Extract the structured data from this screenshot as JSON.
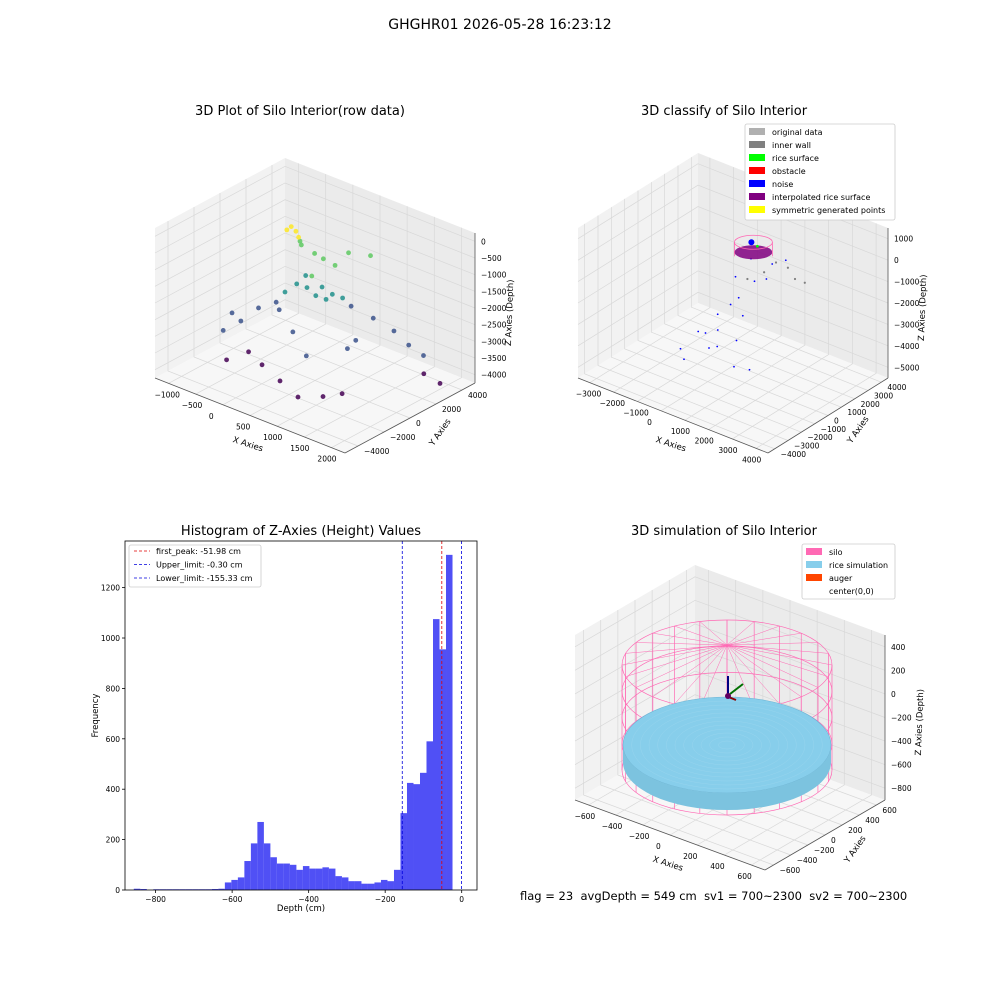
{
  "figure": {
    "suptitle": "GHGHR01 2026-05-28 16:23:12",
    "status": {
      "flag": "flag = 23",
      "avg_depth": "avgDepth = 549 cm",
      "sv1": "sv1 = 700~2300",
      "sv2": "sv2 = 700~2300"
    }
  },
  "colors": {
    "histogram_bar": "#5050f5",
    "first_peak_line": "#e00000",
    "limit_lines": "#0000dd",
    "silo": "#ff69b4",
    "rice": "#87ceeb",
    "auger": "#ff4500",
    "original_data": "#b0b0b0",
    "inner_wall": "#808080",
    "rice_surface": "#00ff00",
    "obstacle": "#ff0000",
    "noise": "#0000ff",
    "interpolated": "#800080",
    "symmetric": "#ffff00"
  },
  "chart_data": [
    {
      "type": "scatter",
      "subtype": "3d",
      "title": "3D Plot of Silo Interior(row data)",
      "xlabel": "X Axies",
      "ylabel": "Y Axies",
      "zlabel": "Z Axies (Depth)",
      "x_ticks": [
        "−1000",
        "−500",
        "0",
        "500",
        "1000",
        "1500",
        "2000"
      ],
      "y_ticks": [
        "−4000",
        "−2000",
        "0",
        "2000",
        "4000"
      ],
      "z_ticks": [
        "0",
        "−500",
        "−1000",
        "−1500",
        "−2000",
        "−2500",
        "−3000",
        "−3500",
        "−4000"
      ],
      "xlim": [
        -1200,
        2000
      ],
      "ylim": [
        -4500,
        4500
      ],
      "zlim": [
        -4100,
        0
      ],
      "colormap": "viridis",
      "points": [
        {
          "x": 0,
          "y": 0,
          "z": -150
        },
        {
          "x": 30,
          "y": 200,
          "z": -300
        },
        {
          "x": -50,
          "y": -100,
          "z": -250
        },
        {
          "x": 100,
          "y": 100,
          "z": -400
        },
        {
          "x": 50,
          "y": 400,
          "z": -600
        },
        {
          "x": 0,
          "y": 700,
          "z": -800
        },
        {
          "x": 150,
          "y": 1000,
          "z": -1000
        },
        {
          "x": 200,
          "y": 1400,
          "z": -1200
        },
        {
          "x": 300,
          "y": 1800,
          "z": -1400
        },
        {
          "x": 600,
          "y": 1500,
          "z": -800
        },
        {
          "x": 800,
          "y": 2200,
          "z": -900
        },
        {
          "x": 200,
          "y": 600,
          "z": -1500
        },
        {
          "x": 300,
          "y": 900,
          "z": -1800
        },
        {
          "x": 400,
          "y": 1200,
          "z": -2000
        },
        {
          "x": 500,
          "y": 1500,
          "z": -2100
        },
        {
          "x": 0,
          "y": 1000,
          "z": -1700
        },
        {
          "x": -200,
          "y": 1200,
          "z": -2100
        },
        {
          "x": -300,
          "y": 800,
          "z": -2300
        },
        {
          "x": -400,
          "y": 600,
          "z": -2600
        },
        {
          "x": 0,
          "y": 1700,
          "z": -2400
        },
        {
          "x": 100,
          "y": 2000,
          "z": -2500
        },
        {
          "x": 400,
          "y": 2500,
          "z": -2600
        },
        {
          "x": 700,
          "y": 2800,
          "z": -2800
        },
        {
          "x": 1000,
          "y": 3000,
          "z": -3000
        },
        {
          "x": 1200,
          "y": 3200,
          "z": -3300
        },
        {
          "x": 1400,
          "y": 3400,
          "z": -3500
        },
        {
          "x": -600,
          "y": 200,
          "z": -2800
        },
        {
          "x": -800,
          "y": -200,
          "z": -3200
        },
        {
          "x": -1000,
          "y": -600,
          "z": -3500
        },
        {
          "x": -500,
          "y": -900,
          "z": -3700
        },
        {
          "x": -200,
          "y": -1200,
          "z": -3800
        },
        {
          "x": 200,
          "y": -1600,
          "z": -3900
        },
        {
          "x": 600,
          "y": -2000,
          "z": -4000
        },
        {
          "x": 900,
          "y": -1500,
          "z": -3900
        },
        {
          "x": 1100,
          "y": -1000,
          "z": -3800
        },
        {
          "x": -700,
          "y": -1600,
          "z": -3900
        },
        {
          "x": -900,
          "y": -400,
          "z": -3000
        },
        {
          "x": 400,
          "y": -600,
          "z": -3300
        },
        {
          "x": 800,
          "y": 600,
          "z": -3100
        },
        {
          "x": 1600,
          "y": 2600,
          "z": -3700
        },
        {
          "x": 1800,
          "y": 2900,
          "z": -3900
        },
        {
          "x": -300,
          "y": 400,
          "z": -2700
        },
        {
          "x": 100,
          "y": -300,
          "z": -2900
        },
        {
          "x": 600,
          "y": 2000,
          "z": -3300
        },
        {
          "x": -100,
          "y": 1500,
          "z": -2200
        }
      ]
    },
    {
      "type": "scatter",
      "subtype": "3d",
      "title": "3D classify of Silo Interior",
      "xlabel": "X Axies",
      "ylabel": "Y Axies",
      "zlabel": "Z Axies (Depth)",
      "x_ticks": [
        "−3000",
        "−2000",
        "−1000",
        "0",
        "1000",
        "2000",
        "3000",
        "4000"
      ],
      "y_ticks": [
        "−4000",
        "−3000",
        "−2000",
        "−1000",
        "0",
        "1000",
        "2000",
        "3000",
        "4000"
      ],
      "z_ticks": [
        "1000",
        "0",
        "−1000",
        "−2000",
        "−3000",
        "−4000",
        "−5000"
      ],
      "xlim": [
        -3500,
        4500
      ],
      "ylim": [
        -4500,
        4500
      ],
      "zlim": [
        -5500,
        1500
      ],
      "legend": {
        "placement": "top-right",
        "entries": [
          "original data",
          "inner wall",
          "rice surface",
          "obstacle",
          "noise",
          "interpolated rice surface",
          "symmetric generated points"
        ]
      },
      "categories": [
        "original data",
        "inner wall",
        "rice surface",
        "obstacle",
        "noise",
        "interpolated rice surface",
        "symmetric generated points"
      ]
    },
    {
      "type": "bar",
      "subtype": "histogram",
      "title": "Histogram of Z-Axies (Height) Values",
      "xlabel": "Depth (cm)",
      "ylabel": "Frequency",
      "xlim": [
        -880,
        40
      ],
      "ylim": [
        0,
        1385
      ],
      "x_ticks": [
        -800,
        -600,
        -400,
        -200,
        0
      ],
      "x_tick_labels": [
        "−800",
        "−600",
        "−400",
        "−200",
        "0"
      ],
      "y_ticks": [
        0,
        200,
        400,
        600,
        800,
        1000,
        1200
      ],
      "y_tick_labels": [
        "0",
        "200",
        "400",
        "600",
        "800",
        "1000",
        "1200"
      ],
      "bin_width": 17,
      "bin_starts": [
        -857,
        -840,
        -823,
        -806,
        -789,
        -772,
        -755,
        -738,
        -721,
        -704,
        -687,
        -670,
        -653,
        -636,
        -619,
        -602,
        -585,
        -568,
        -551,
        -534,
        -517,
        -500,
        -483,
        -466,
        -449,
        -432,
        -415,
        -398,
        -381,
        -364,
        -347,
        -330,
        -313,
        -296,
        -279,
        -262,
        -245,
        -228,
        -211,
        -194,
        -177,
        -160,
        -143,
        -126,
        -109,
        -92,
        -75,
        -58,
        -41,
        -24,
        -7
      ],
      "values": [
        5,
        4,
        0,
        3,
        3,
        3,
        3,
        3,
        3,
        3,
        3,
        3,
        4,
        5,
        30,
        40,
        50,
        115,
        185,
        270,
        185,
        130,
        105,
        105,
        100,
        80,
        95,
        85,
        85,
        90,
        85,
        55,
        50,
        35,
        35,
        25,
        25,
        30,
        40,
        35,
        80,
        305,
        425,
        420,
        465,
        590,
        1075,
        955,
        1330,
        0,
        0
      ],
      "reference_lines": [
        {
          "label": "first_peak: -51.98 cm",
          "x": -51.98,
          "style": "dashed",
          "color": "#e00000"
        },
        {
          "label": "Upper_limit: -0.30 cm",
          "x": -0.3,
          "style": "dashed",
          "color": "#0000dd"
        },
        {
          "label": "Lower_limit: -155.33 cm",
          "x": -155.33,
          "style": "dashed",
          "color": "#0000dd"
        }
      ],
      "legend": {
        "placement": "top-left"
      }
    },
    {
      "type": "surface",
      "subtype": "3d",
      "title": "3D simulation of Silo Interior",
      "xlabel": "X Axies",
      "ylabel": "Y Axies",
      "zlabel": "Z Axies (Depth)",
      "x_ticks": [
        "−600",
        "−400",
        "−200",
        "0",
        "200",
        "400",
        "600"
      ],
      "y_ticks": [
        "−600",
        "−400",
        "−200",
        "0",
        "200",
        "400",
        "600"
      ],
      "z_ticks": [
        "400",
        "200",
        "0",
        "−200",
        "−400",
        "−600",
        "−800"
      ],
      "xlim": [
        -700,
        700
      ],
      "ylim": [
        -700,
        700
      ],
      "zlim": [
        -900,
        500
      ],
      "legend": {
        "placement": "top-right",
        "entries": [
          "silo",
          "rice simulation",
          "auger",
          "center(0,0)"
        ]
      }
    }
  ]
}
